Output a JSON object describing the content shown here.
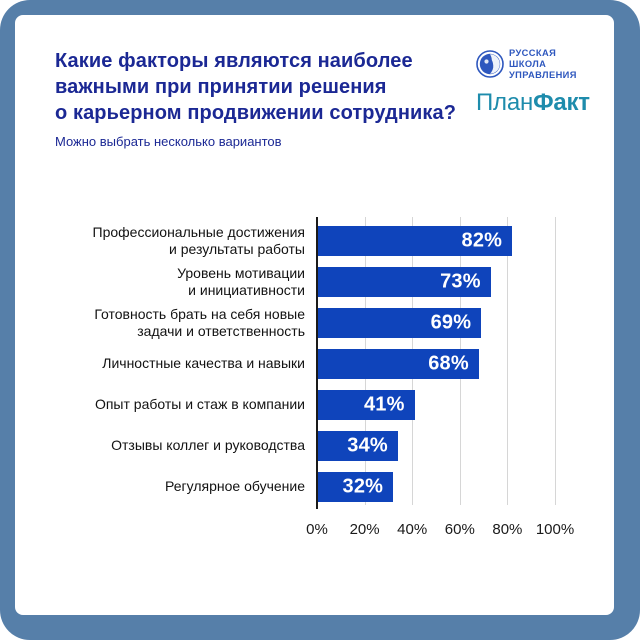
{
  "frame": {
    "background": "#567FA9"
  },
  "header": {
    "title_lines": [
      "Какие факторы являются наиболее",
      "важными при принятии решения",
      "о карьерном продвижении сотрудника?"
    ],
    "subtitle": "Можно выбрать несколько вариантов",
    "title_color": "#1B2894"
  },
  "logos": {
    "rsu": {
      "icon": "globe-icon",
      "lines": [
        "РУССКАЯ",
        "ШКОЛА",
        "УПРАВЛЕНИЯ"
      ],
      "color": "#2E57BE"
    },
    "planfact": {
      "plan": "План",
      "fakt": "Факт",
      "color": "#1E8CAC"
    }
  },
  "chart_data": {
    "type": "bar",
    "orientation": "horizontal",
    "title": "",
    "items": [
      {
        "label": "Профессиональные достижения и результаты работы",
        "label_lines": [
          "Профессиональные достижения",
          "и результаты работы"
        ],
        "value": 82
      },
      {
        "label": "Уровень мотивации и инициативности",
        "label_lines": [
          "Уровень мотивации",
          "и инициативности"
        ],
        "value": 73
      },
      {
        "label": "Готовность брать на себя новые задачи и ответственность",
        "label_lines": [
          "Готовность брать на себя новые",
          "задачи и ответственность"
        ],
        "value": 69
      },
      {
        "label": "Личностные качества и навыки",
        "label_lines": [
          "Личностные качества и навыки"
        ],
        "value": 68
      },
      {
        "label": "Опыт работы и стаж в компании",
        "label_lines": [
          "Опыт работы и стаж в компании"
        ],
        "value": 41
      },
      {
        "label": "Отзывы коллег и руководства",
        "label_lines": [
          "Отзывы коллег и руководства"
        ],
        "value": 34
      },
      {
        "label": "Регулярное обучение",
        "label_lines": [
          "Регулярное обучение"
        ],
        "value": 32
      }
    ],
    "value_suffix": "%",
    "x_ticks": [
      "0%",
      "20%",
      "40%",
      "60%",
      "80%",
      "100%"
    ],
    "xlim": [
      0,
      100
    ],
    "grid": true,
    "legend": false,
    "bar_color": "#0F44BB",
    "value_color": "#FFFFFF",
    "label_color": "#121212"
  }
}
